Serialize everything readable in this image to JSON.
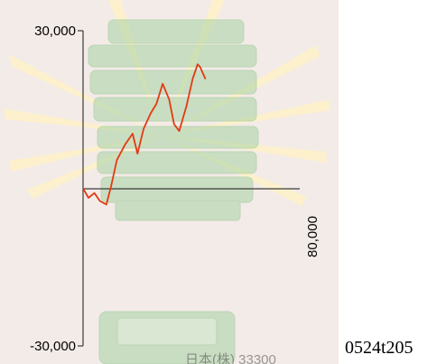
{
  "caption": "0524t205",
  "colors": {
    "background": "#f3ebe8",
    "stand_image": "#a8d3a4",
    "burst": "#fff4c8",
    "axis": "#3a3a3a",
    "series": "#e23a12"
  },
  "chart_data": {
    "type": "line",
    "title": "",
    "xlabel": "",
    "ylabel": "",
    "xlim": [
      0,
      80000
    ],
    "ylim": [
      -30000,
      30000
    ],
    "y_tick_labels": [
      "30,000",
      "-30,000"
    ],
    "x_tick_labels": [
      "80,000"
    ],
    "grid": false,
    "legend": "none",
    "background_image": "green-coin-stand-photo",
    "series": [
      {
        "color": "#e23a12",
        "x": [
          0,
          2000,
          4200,
          6200,
          8600,
          10300,
          12500,
          15600,
          18300,
          20100,
          22400,
          25000,
          27100,
          29400,
          31800,
          33600,
          35500,
          38200,
          40500,
          42300,
          43200,
          45200
        ],
        "y": [
          0,
          -1800,
          -900,
          -2400,
          -3100,
          300,
          5400,
          8400,
          10400,
          6600,
          11400,
          14300,
          16100,
          19900,
          16900,
          12200,
          10900,
          15700,
          20900,
          23600,
          23100,
          20800
        ]
      }
    ]
  }
}
